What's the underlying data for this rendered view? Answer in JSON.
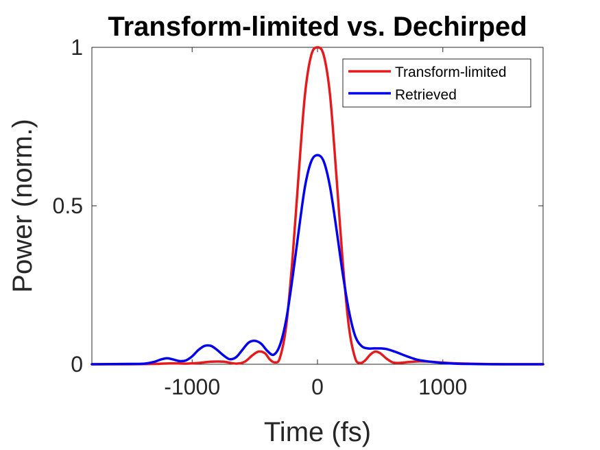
{
  "chart_data": {
    "type": "line",
    "title": "Transform-limited vs. Dechirped",
    "xlabel": "Time (fs)",
    "ylabel": "Power (norm.)",
    "xlim": [
      -1800,
      1800
    ],
    "ylim": [
      0,
      1
    ],
    "xticks": [
      -1000,
      0,
      1000
    ],
    "xtick_labels": [
      "-1000",
      "0",
      "1000"
    ],
    "yticks": [
      0,
      0.5,
      1
    ],
    "ytick_labels": [
      "0",
      "0.5",
      "1"
    ],
    "grid": false,
    "legend_position": "top-right",
    "series": [
      {
        "name": "Transform-limited",
        "color": "#e41a1c",
        "x": [
          -1800,
          -1500,
          -1300,
          -1150,
          -1050,
          -950,
          -850,
          -750,
          -650,
          -580,
          -520,
          -470,
          -420,
          -380,
          -340,
          -300,
          -250,
          -200,
          -150,
          -100,
          -50,
          0,
          50,
          100,
          150,
          200,
          250,
          300,
          340,
          380,
          420,
          460,
          500,
          550,
          600,
          650,
          700,
          800,
          900,
          1000,
          1100,
          1300,
          1500,
          1800
        ],
        "y": [
          0,
          0,
          0.001,
          0.003,
          0.002,
          0.004,
          0.008,
          0.008,
          0.002,
          0.008,
          0.028,
          0.04,
          0.035,
          0.015,
          0.006,
          0.02,
          0.12,
          0.33,
          0.6,
          0.85,
          0.975,
          1.0,
          0.975,
          0.85,
          0.6,
          0.33,
          0.12,
          0.02,
          0.004,
          0.012,
          0.03,
          0.04,
          0.035,
          0.018,
          0.006,
          0.004,
          0.006,
          0.009,
          0.008,
          0.005,
          0.003,
          0.001,
          0,
          0
        ]
      },
      {
        "name": "Retrieved",
        "color": "#0000ee",
        "x": [
          -1800,
          -1500,
          -1380,
          -1300,
          -1250,
          -1200,
          -1150,
          -1100,
          -1050,
          -1000,
          -950,
          -900,
          -850,
          -800,
          -750,
          -700,
          -650,
          -600,
          -550,
          -500,
          -450,
          -400,
          -350,
          -300,
          -250,
          -200,
          -150,
          -100,
          -50,
          0,
          50,
          100,
          150,
          200,
          250,
          300,
          350,
          400,
          450,
          500,
          550,
          600,
          650,
          700,
          750,
          800,
          900,
          1000,
          1100,
          1200,
          1400,
          1600,
          1800
        ],
        "y": [
          0,
          0.001,
          0.002,
          0.008,
          0.015,
          0.019,
          0.015,
          0.01,
          0.012,
          0.025,
          0.045,
          0.058,
          0.058,
          0.045,
          0.028,
          0.016,
          0.022,
          0.045,
          0.068,
          0.074,
          0.065,
          0.042,
          0.03,
          0.06,
          0.14,
          0.27,
          0.42,
          0.56,
          0.64,
          0.66,
          0.64,
          0.56,
          0.43,
          0.29,
          0.17,
          0.09,
          0.058,
          0.05,
          0.05,
          0.05,
          0.048,
          0.042,
          0.035,
          0.027,
          0.02,
          0.014,
          0.008,
          0.004,
          0.002,
          0.001,
          0,
          0,
          0
        ]
      }
    ]
  }
}
